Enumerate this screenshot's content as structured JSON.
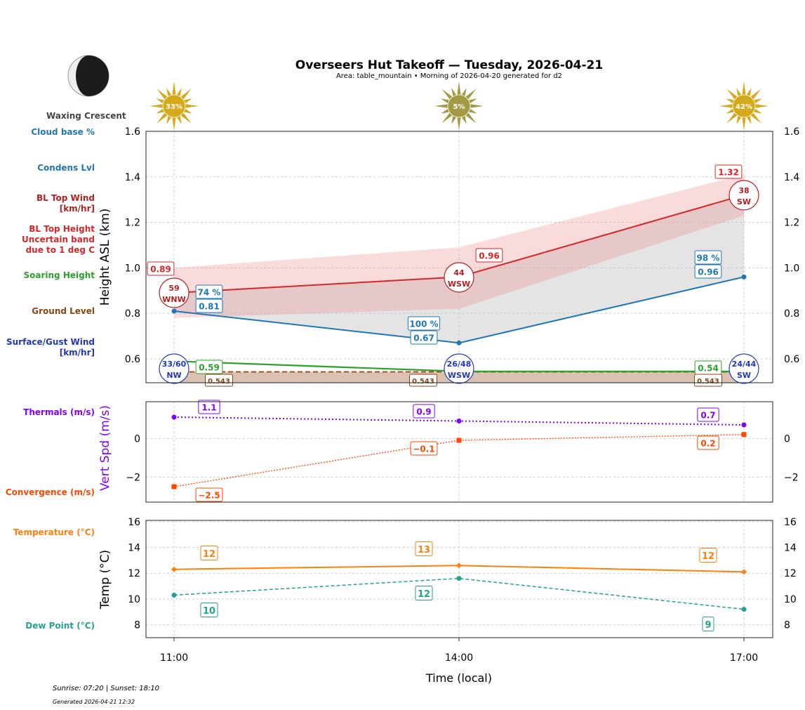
{
  "title": "Overseers Hut Takeoff — Tuesday, 2026-04-21",
  "subtitle": "Area: table_mountain • Morning of 2026-04-20 generated for d2",
  "moon": {
    "phase": "Waxing Crescent",
    "icon": "moon-waxing-crescent-icon"
  },
  "footer": {
    "sun_times": "Sunrise: 07:20 | Sunset: 18:10",
    "generated": "Generated 2026-04-21 12:32"
  },
  "legend_labels": {
    "cloud_base": "Cloud base %",
    "condens": "Condens Lvl",
    "bl_wind": "BL Top Wind\n[km/hr]",
    "bl_top": "BL Top Height\nUncertain band\ndue to 1 deg C",
    "soaring": "Soaring Height",
    "ground": "Ground Level",
    "surface_wind": "Surface/Gust Wind\n[km/hr]",
    "thermals": "Thermals (m/s)",
    "convergence": "Convergence (m/s)",
    "temperature": "Temperature (°C)",
    "dewpoint": "Dew Point (°C)"
  },
  "colors": {
    "cloud": "#1f77b4",
    "bl": "#d62728",
    "blwind": "#b22222",
    "soaring": "#2ca02c",
    "ground": "#8b4513",
    "surface": "#2238b8",
    "thermal": "#8000ff",
    "conv": "#ff4500",
    "temp": "#ff7f0e",
    "dew": "#26a08f"
  },
  "chart_data": [
    {
      "type": "line",
      "ylabel": "Height ASL (km)",
      "ylim": [
        0.495,
        1.6
      ],
      "yticks": [
        0.6,
        0.8,
        1.0,
        1.2,
        1.4,
        1.6
      ],
      "x": [
        "11:00",
        "14:00",
        "17:00"
      ],
      "grid": true,
      "sun_cloud_cover": [
        "33%",
        "5%",
        "42%"
      ],
      "series": [
        {
          "name": "BL Top Height",
          "values": [
            0.89,
            0.96,
            1.32
          ],
          "labels": [
            "0.89",
            "0.96",
            "1.32"
          ]
        },
        {
          "name": "Uncertain band upper",
          "values": [
            1.0,
            1.09,
            1.41
          ]
        },
        {
          "name": "Uncertain band lower",
          "values": [
            0.78,
            0.82,
            1.23
          ]
        },
        {
          "name": "Condens Lvl",
          "values": [
            0.81,
            0.67,
            0.96
          ],
          "labels": [
            "0.81",
            "0.67",
            "0.96"
          ],
          "cloud_base_pct": [
            "74 %",
            "100 %",
            "98 %"
          ]
        },
        {
          "name": "Soaring Height",
          "values": [
            0.59,
            0.545,
            0.545
          ],
          "labels": [
            "0.59",
            "",
            "0.54"
          ]
        },
        {
          "name": "Ground Level",
          "values": [
            0.543,
            0.543,
            0.543
          ],
          "labels": [
            "0.543",
            "0.543",
            "0.543"
          ]
        }
      ],
      "bl_top_wind": [
        {
          "speed": "59",
          "dir": "WNW"
        },
        {
          "speed": "44",
          "dir": "WSW"
        },
        {
          "speed": "38",
          "dir": "SW"
        }
      ],
      "surface_wind": [
        {
          "speed": "33/60",
          "dir": "NW"
        },
        {
          "speed": "26/48",
          "dir": "WSW"
        },
        {
          "speed": "24/44",
          "dir": "SW"
        }
      ]
    },
    {
      "type": "line",
      "ylabel": "Vert Spd (m/s)",
      "ylim": [
        -3.3,
        1.9
      ],
      "yticks": [
        -2,
        0
      ],
      "x": [
        "11:00",
        "14:00",
        "17:00"
      ],
      "grid": true,
      "series": [
        {
          "name": "Thermals (m/s)",
          "values": [
            1.1,
            0.9,
            0.7
          ],
          "labels": [
            "1.1",
            "0.9",
            "0.7"
          ]
        },
        {
          "name": "Convergence (m/s)",
          "values": [
            -2.5,
            -0.1,
            0.2
          ],
          "labels": [
            "-2.5",
            "-0.1",
            "0.2"
          ]
        }
      ]
    },
    {
      "type": "line",
      "ylabel": "Temp (°C)",
      "xlabel": "Time (local)",
      "ylim": [
        7,
        16.1
      ],
      "yticks": [
        8,
        10,
        12,
        14,
        16
      ],
      "x": [
        "11:00",
        "14:00",
        "17:00"
      ],
      "grid": true,
      "series": [
        {
          "name": "Temperature (°C)",
          "values": [
            12.3,
            12.6,
            12.1
          ],
          "labels": [
            "12",
            "13",
            "12"
          ]
        },
        {
          "name": "Dew Point (°C)",
          "values": [
            10.3,
            11.6,
            9.2
          ],
          "labels": [
            "10",
            "12",
            "9"
          ]
        }
      ]
    }
  ]
}
